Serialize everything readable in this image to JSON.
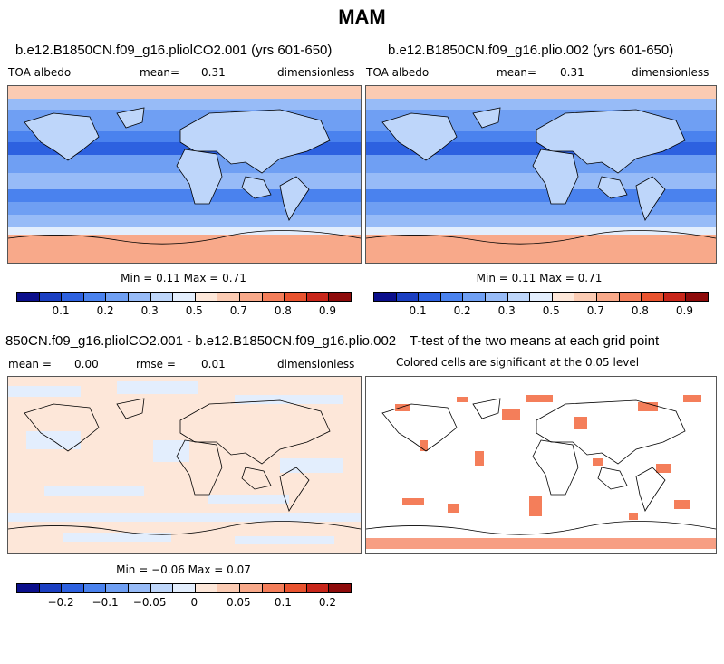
{
  "title": "MAM",
  "panels": {
    "p1": {
      "title": "b.e12.B1850CN.f09_g16.pliolCO2.001 (yrs 601-650)",
      "left_label": "TOA albedo",
      "mean_label": "mean=",
      "mean_value": "0.31",
      "units": "dimensionless",
      "minmax": "Min =   0.11 Max =   0.71"
    },
    "p2": {
      "title": "b.e12.B1850CN.f09_g16.plio.002 (yrs 601-650)",
      "left_label": "TOA albedo",
      "mean_label": "mean=",
      "mean_value": "0.31",
      "units": "dimensionless",
      "minmax": "Min =   0.11 Max =   0.71"
    },
    "p3": {
      "title": "850CN.f09_g16.pliolCO2.001 - b.e12.B1850CN.f09_g16.plio.002",
      "mean_label": "mean =",
      "mean_value": "0.00",
      "rmse_label": "rmse =",
      "rmse_value": "0.01",
      "units": "dimensionless",
      "minmax": "Min =  −0.06 Max =   0.07"
    },
    "p4": {
      "title": "T-test of the two means at each grid point",
      "subtitle": "Colored cells are significant at the 0.05 level"
    }
  },
  "colorbars": {
    "albedo": {
      "colors": [
        "#0b0f8c",
        "#1b3fc2",
        "#2d61e0",
        "#4a82ee",
        "#6f9ff3",
        "#97bbf7",
        "#bed6fa",
        "#e3eefd",
        "#fde7d9",
        "#fbcbb3",
        "#f8a98a",
        "#f47e5a",
        "#e9532f",
        "#c8261a",
        "#8e0b0b"
      ],
      "labels": [
        "0.1",
        "0.2",
        "0.3",
        "0.5",
        "0.7",
        "0.8",
        "0.9"
      ]
    },
    "diff": {
      "colors": [
        "#0b0f8c",
        "#1b3fc2",
        "#2d61e0",
        "#4a82ee",
        "#6f9ff3",
        "#97bbf7",
        "#bed6fa",
        "#e3eefd",
        "#fde7d9",
        "#fbcbb3",
        "#f8a98a",
        "#f47e5a",
        "#e9532f",
        "#c8261a",
        "#8e0b0b"
      ],
      "labels": [
        "−0.2",
        "−0.1",
        "−0.05",
        "0",
        "0.05",
        "0.1",
        "0.2"
      ]
    }
  }
}
